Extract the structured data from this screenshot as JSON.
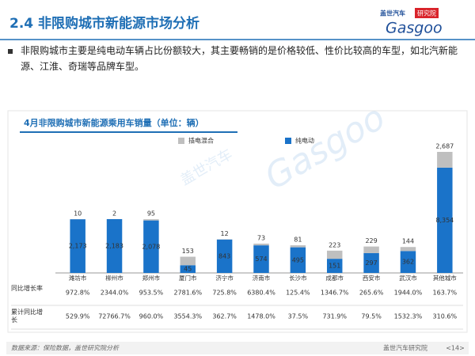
{
  "header": {
    "title": "2.4 非限购城市新能源市场分析",
    "logo_cn": "盖世汽车",
    "logo_badge": "研究院",
    "logo_en": "Gasgoo"
  },
  "bullet": "非限购城市主要是纯电动车辆占比份额较大，其主要畅销的是价格较低、性价比较高的车型，如北汽新能源、江淮、奇瑞等品牌车型。",
  "chart_data": {
    "type": "bar",
    "stacked": true,
    "yscale": "sqrt",
    "title": "4月非限购城市新能源乘用车销量（单位：辆）",
    "categories": [
      "潍坊市",
      "柳州市",
      "郑州市",
      "厦门市",
      "济宁市",
      "济南市",
      "长沙市",
      "成都市",
      "西安市",
      "武汉市",
      "其他城市"
    ],
    "series": [
      {
        "name": "纯电动",
        "color": "#1a73c9",
        "values": [
          2173,
          2183,
          2078,
          45,
          843,
          574,
          495,
          151,
          297,
          362,
          8354
        ],
        "value_labels": [
          "2,173",
          "2,183",
          "2,078",
          "45",
          "843",
          "574",
          "495",
          "151",
          "297",
          "362",
          "8,354"
        ]
      },
      {
        "name": "插电混合",
        "color": "#bfbfbf",
        "values": [
          10,
          2,
          95,
          153,
          12,
          73,
          81,
          223,
          229,
          144,
          2687
        ],
        "value_labels": [
          "10",
          "2",
          "95",
          "153",
          "12",
          "73",
          "81",
          "223",
          "229",
          "144",
          "2,687"
        ]
      }
    ],
    "legend_order": [
      1,
      0
    ],
    "table": [
      {
        "label": "同比增长率",
        "values": [
          "972.8%",
          "2344.0%",
          "953.5%",
          "2781.6%",
          "725.8%",
          "6380.4%",
          "125.4%",
          "1346.7%",
          "265.6%",
          "1944.0%",
          "163.7%"
        ]
      },
      {
        "label": "累计同比增长",
        "values": [
          "529.9%",
          "72766.7%",
          "960.0%",
          "3554.3%",
          "362.7%",
          "1478.0%",
          "37.5%",
          "731.9%",
          "79.5%",
          "1532.3%",
          "310.6%"
        ]
      }
    ]
  },
  "watermark": {
    "cn": "盖世汽车",
    "en": "Gasgoo"
  },
  "footer": {
    "source": "数据来源：保险数据，盖世研究院分析",
    "org": "盖世汽车研究院",
    "page": "<14>"
  }
}
